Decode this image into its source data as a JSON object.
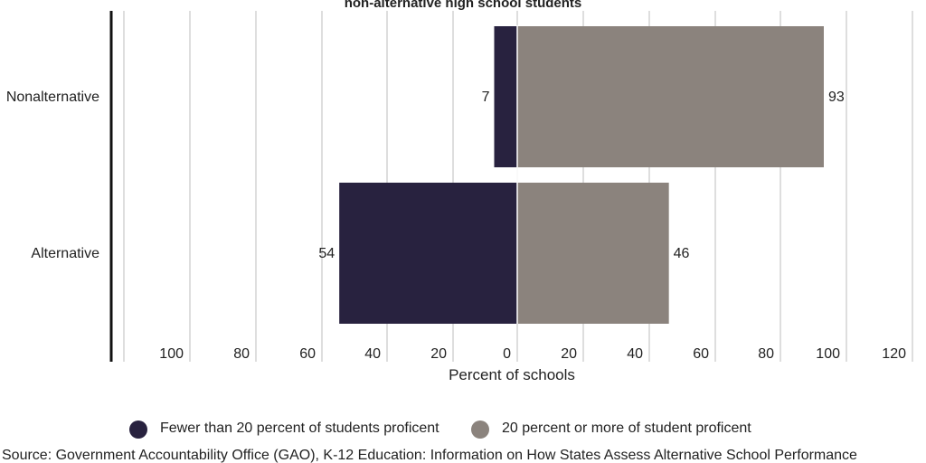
{
  "chart_data": {
    "type": "bar",
    "orientation": "horizontal-diverging",
    "title": "non-alternative high school students",
    "categories": [
      "Nonalternative",
      "Alternative"
    ],
    "series": [
      {
        "name": "Fewer than 20 percent of students proficent",
        "values": [
          7,
          54
        ],
        "direction": "left",
        "color": "#28223f"
      },
      {
        "name": "20 percent or more of student proficent",
        "values": [
          93,
          46
        ],
        "direction": "right",
        "color": "#8b837d"
      }
    ],
    "xlabel": "Percent of schools",
    "x_ticks": [
      "100",
      "80",
      "60",
      "40",
      "20",
      "0",
      "20",
      "40",
      "60",
      "80",
      "100",
      "120"
    ],
    "xlim": [
      -120,
      120
    ],
    "grid": true,
    "legend_position": "bottom",
    "source": "Source: Government Accountability Office (GAO), K-12 Education: Information on How States Assess Alternative School Performance"
  }
}
